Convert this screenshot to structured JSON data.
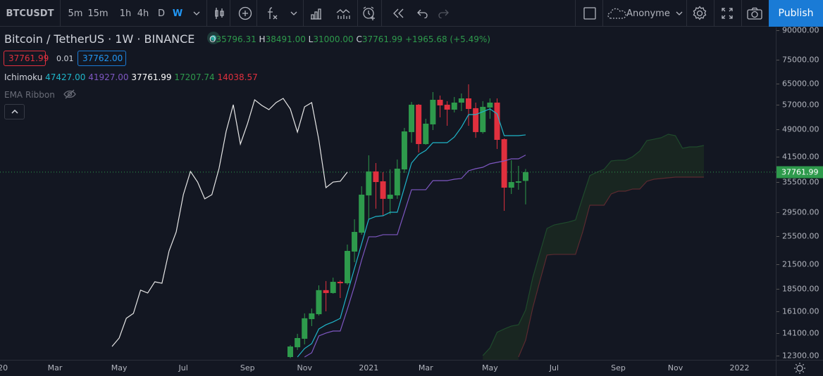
{
  "toolbar": {
    "symbol": "BTCUSDT",
    "intervals": [
      "5m",
      "15m",
      "1h",
      "4h",
      "D",
      "W"
    ],
    "active_interval": "W",
    "account": "Anonyme",
    "publish": "Publish",
    "icons": [
      "candles-icon",
      "add-symbol-icon",
      "indicators-fx-icon",
      "bar-chart-icon",
      "templates-icon",
      "alert-icon",
      "replay-icon",
      "undo-icon",
      "redo-icon",
      "layout-square-icon",
      "cloud-icon",
      "gear-icon",
      "fullscreen-icon",
      "camera-icon"
    ]
  },
  "legend": {
    "title": "Bitcoin / TetherUS · 1W · BINANCE",
    "status_color": "#26a69a",
    "o_label": "O",
    "o": "35796.31",
    "h_label": "H",
    "h": "38491.00",
    "l_label": "L",
    "l": "31000.00",
    "c_label": "C",
    "c": "37761.99",
    "change": "+1965.68 (+5.49%)",
    "bid": "37761.99",
    "spread": "0.01",
    "ask": "37762.00",
    "ichimoku": {
      "name": "Ichimoku",
      "v1": "47427.00",
      "v2": "41927.00",
      "v3": "37761.99",
      "v4": "17207.74",
      "v5": "14038.57"
    },
    "ema_ribbon": "EMA Ribbon"
  },
  "colors": {
    "up": "#2e9a4c",
    "down": "#e0303e",
    "tenkan": "#1fb5c9",
    "kijun": "#7e57c2",
    "chikou": "#e6e6e6",
    "spanA": "#1f4a2c",
    "spanB": "#5b2a30",
    "cloud": "#1b2a22",
    "accent": "#1a7bd6",
    "background": "#131722"
  },
  "chart_data": {
    "type": "candlestick",
    "y_scale": "log",
    "ylim": [
      12300,
      90000
    ],
    "price_ticks": [
      "90000.00",
      "75000.00",
      "65000.00",
      "57000.00",
      "49000.00",
      "41500.00",
      "35500.00",
      "29500.00",
      "25500.00",
      "21500.00",
      "18500.00",
      "16100.00",
      "14100.00",
      "12300.00"
    ],
    "last_price": "37761.99",
    "time_ticks": [
      {
        "label": "2020",
        "date": "2020-01-06"
      },
      {
        "label": "Mar",
        "date": "2020-03-02"
      },
      {
        "label": "May",
        "date": "2020-05-04"
      },
      {
        "label": "Jul",
        "date": "2020-07-06"
      },
      {
        "label": "Sep",
        "date": "2020-09-07"
      },
      {
        "label": "Nov",
        "date": "2020-11-02"
      },
      {
        "label": "2021",
        "date": "2021-01-04"
      },
      {
        "label": "Mar",
        "date": "2021-03-01"
      },
      {
        "label": "May",
        "date": "2021-05-03"
      },
      {
        "label": "Jul",
        "date": "2021-07-05"
      },
      {
        "label": "Sep",
        "date": "2021-09-06"
      },
      {
        "label": "Nov",
        "date": "2021-11-01"
      },
      {
        "label": "2022",
        "date": "2022-01-03"
      }
    ],
    "candles_columns": [
      "date",
      "open",
      "high",
      "low",
      "close"
    ],
    "candles": [
      [
        "2020-10-19",
        12180,
        13100,
        12100,
        12990
      ],
      [
        "2020-10-26",
        12930,
        14040,
        12720,
        13680
      ],
      [
        "2020-11-02",
        13620,
        15910,
        13160,
        15440
      ],
      [
        "2020-11-09",
        15360,
        16390,
        14720,
        15910
      ],
      [
        "2020-11-16",
        15830,
        18890,
        15700,
        18340
      ],
      [
        "2020-11-23",
        18340,
        19390,
        16110,
        18020
      ],
      [
        "2020-11-30",
        18020,
        19800,
        17940,
        19300
      ],
      [
        "2020-12-07",
        19300,
        19470,
        17480,
        19130
      ],
      [
        "2020-12-14",
        19130,
        24240,
        18970,
        23320
      ],
      [
        "2020-12-21",
        23220,
        28300,
        21770,
        26190
      ],
      [
        "2020-12-28",
        26070,
        34640,
        25740,
        32900
      ],
      [
        "2021-01-04",
        32750,
        41860,
        28300,
        37920
      ],
      [
        "2021-01-11",
        37920,
        39920,
        30190,
        35540
      ],
      [
        "2021-01-18",
        35700,
        37750,
        28920,
        32070
      ],
      [
        "2021-01-25",
        32070,
        38400,
        29160,
        32900
      ],
      [
        "2021-02-01",
        32750,
        40800,
        32070,
        38570
      ],
      [
        "2021-02-08",
        38400,
        49500,
        37590,
        48450
      ],
      [
        "2021-02-15",
        48250,
        58030,
        45220,
        57040
      ],
      [
        "2021-02-22",
        57040,
        57300,
        42590,
        44840
      ],
      [
        "2021-03-01",
        44840,
        52350,
        44650,
        50800
      ],
      [
        "2021-03-08",
        50580,
        61640,
        48860,
        58790
      ],
      [
        "2021-03-15",
        58790,
        60330,
        52790,
        56810
      ],
      [
        "2021-03-22",
        57040,
        58300,
        50140,
        55350
      ],
      [
        "2021-03-29",
        55350,
        59810,
        54420,
        57790
      ],
      [
        "2021-04-05",
        57790,
        61110,
        54880,
        59300
      ],
      [
        "2021-04-12",
        59300,
        64630,
        50140,
        55590
      ],
      [
        "2021-04-19",
        55850,
        57790,
        46610,
        48250
      ],
      [
        "2021-04-26",
        48250,
        58300,
        47800,
        56310
      ],
      [
        "2021-05-03",
        56080,
        59300,
        52350,
        57790
      ],
      [
        "2021-05-10",
        57790,
        59300,
        43510,
        46010
      ],
      [
        "2021-05-17",
        46200,
        46400,
        29800,
        34340
      ],
      [
        "2021-05-24",
        34340,
        40610,
        33040,
        35540
      ],
      [
        "2021-05-31",
        35400,
        39240,
        33910,
        35700
      ],
      [
        "2021-06-07",
        35796.31,
        38491.0,
        31000.0,
        37761.99
      ]
    ],
    "tenkan": {
      "start": "2020-10-26",
      "values": [
        12180,
        12830,
        13220,
        14460,
        14840,
        15100,
        15430,
        18020,
        20940,
        24350,
        28300,
        28790,
        28910,
        29540,
        29540,
        34350,
        39920,
        42040,
        43130,
        45220,
        45220,
        45220,
        46810,
        49720,
        53710,
        53710,
        54650,
        55600,
        53950,
        47210,
        47210,
        47210,
        47427
      ]
    },
    "kijun": {
      "start": "2020-11-02",
      "values": [
        12180,
        12500,
        13860,
        14100,
        14280,
        14280,
        16320,
        18810,
        22050,
        25420,
        25420,
        25750,
        25750,
        25750,
        29540,
        33910,
        33910,
        33910,
        35850,
        35850,
        35850,
        36160,
        36320,
        38080,
        38570,
        38900,
        39750,
        40090,
        40440,
        40970,
        40970,
        41927
      ]
    },
    "chikou_displacement": 25,
    "span_a": {
      "start": "2021-04-26",
      "values": [
        12290,
        12880,
        14170,
        14460,
        14720,
        14840,
        16250,
        19800,
        23020,
        26760,
        27340,
        27580,
        27820,
        28180,
        32340,
        36950,
        37750,
        38410,
        40440,
        40620,
        40620,
        41500,
        42950,
        45810,
        46200,
        46610,
        47620,
        47210,
        43700,
        44070,
        44070,
        44450
      ]
    },
    "span_b": {
      "start": "2021-05-31",
      "values": [
        12180,
        13500,
        16460,
        19390,
        22730,
        22830,
        22830,
        22830,
        22830,
        26190,
        30840,
        30840,
        30840,
        33040,
        33610,
        33610,
        34050,
        34050,
        35700,
        36160,
        36320,
        36470,
        36630,
        36630,
        36630,
        36630,
        36630
      ]
    }
  }
}
